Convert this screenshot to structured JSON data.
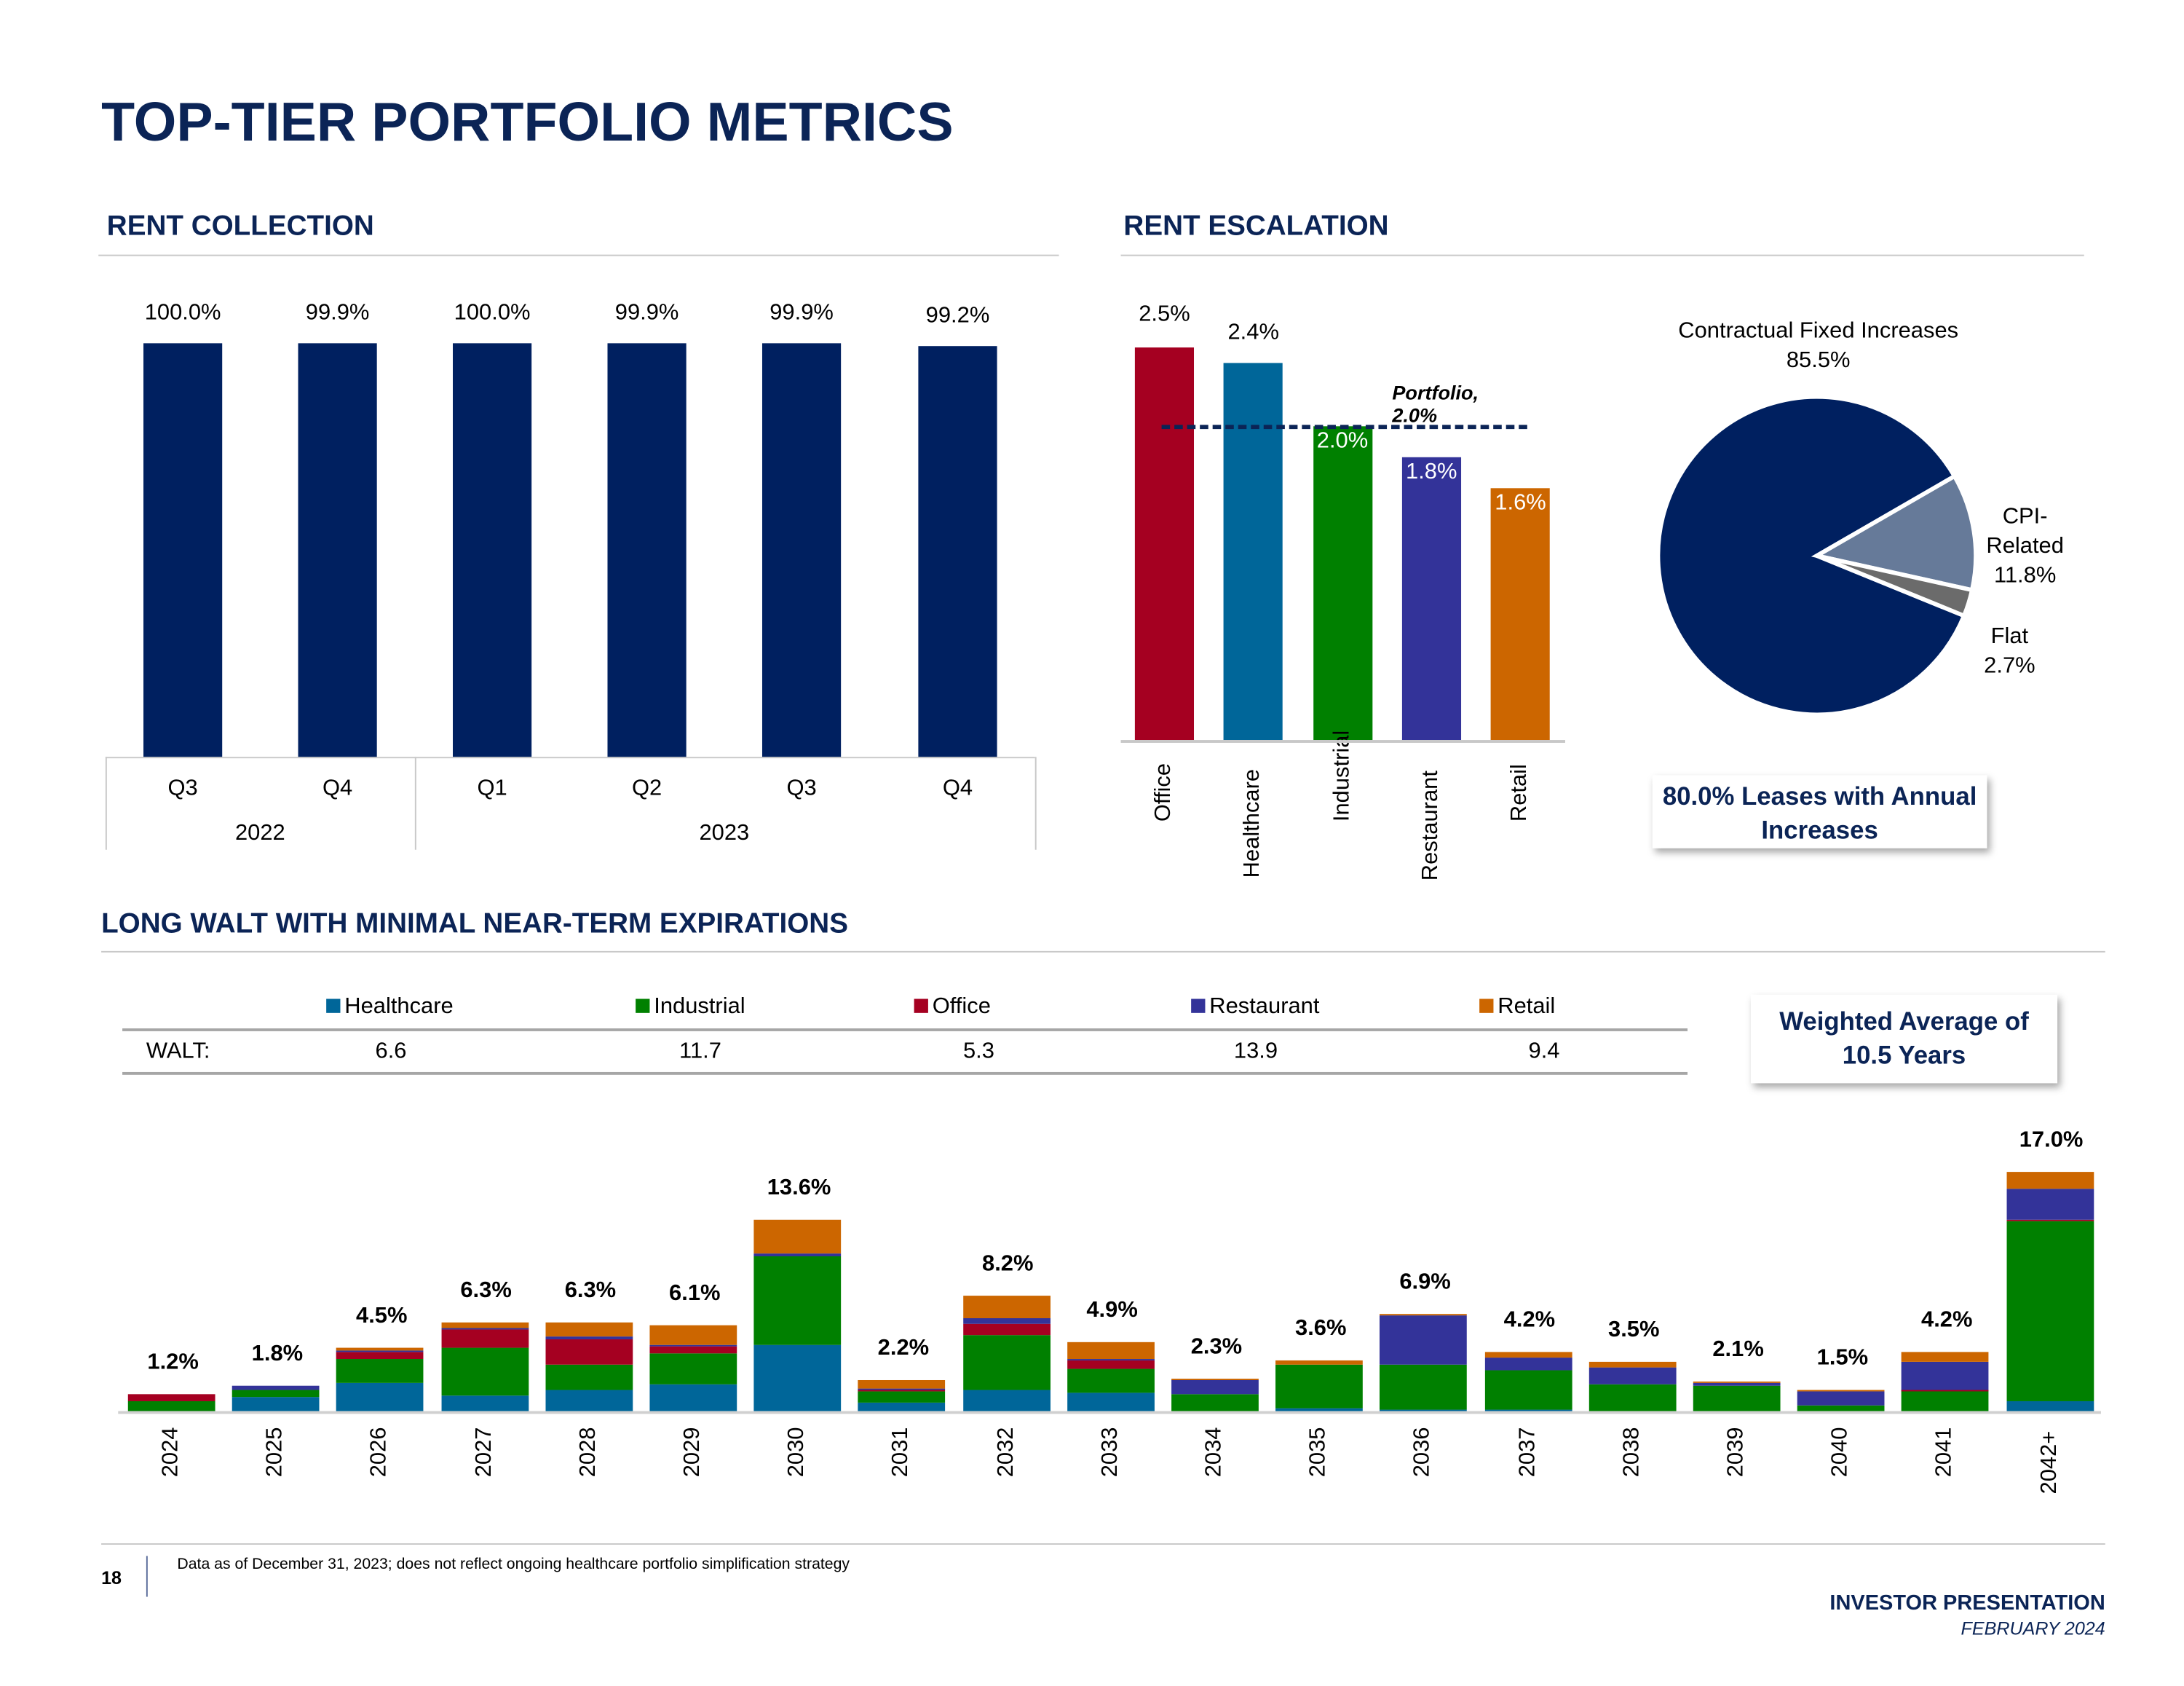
{
  "title": "TOP-TIER PORTFOLIO METRICS",
  "sections": {
    "rent_collection": "RENT COLLECTION",
    "rent_escalation": "RENT ESCALATION",
    "walt": "LONG WALT WITH MINIMAL NEAR-TERM EXPIRATIONS"
  },
  "colors": {
    "navy": "#002060",
    "Healthcare": "#006699",
    "Industrial": "#008000",
    "Office": "#A50021",
    "Restaurant": "#333399",
    "Retail": "#CC6600",
    "cpi": "#667A99",
    "flat": "#6B6B6B"
  },
  "chart_data": [
    {
      "type": "bar",
      "title": "RENT COLLECTION",
      "categories": [
        "Q3",
        "Q4",
        "Q1",
        "Q2",
        "Q3",
        "Q4"
      ],
      "groups": [
        {
          "label": "2022",
          "count": 2
        },
        {
          "label": "2023",
          "count": 4
        }
      ],
      "values": [
        100.0,
        99.9,
        100.0,
        99.9,
        99.9,
        99.2
      ],
      "labels": [
        "100.0%",
        "99.9%",
        "100.0%",
        "99.9%",
        "99.9%",
        "99.2%"
      ],
      "ylim": [
        0,
        100
      ]
    },
    {
      "type": "bar",
      "title": "RENT ESCALATION",
      "categories": [
        "Office",
        "Healthcare",
        "Industrial",
        "Restaurant",
        "Retail"
      ],
      "values": [
        2.5,
        2.4,
        2.0,
        1.8,
        1.6
      ],
      "labels": [
        "2.5%",
        "2.4%",
        "2.0%",
        "1.8%",
        "1.6%"
      ],
      "reference": {
        "label": "Portfolio, 2.0%",
        "value": 2.0
      },
      "ylim": [
        0,
        2.5
      ]
    },
    {
      "type": "pie",
      "slices": [
        {
          "name": "Contractual Fixed Increases",
          "value": 85.5,
          "label": "85.5%"
        },
        {
          "name": "CPI-Related",
          "value": 11.8,
          "label": "11.8%"
        },
        {
          "name": "Flat",
          "value": 2.7,
          "label": "2.7%"
        }
      ],
      "callout": "80.0% Leases with Annual Increases"
    },
    {
      "type": "bar",
      "stacked": true,
      "title": "LONG WALT WITH MINIMAL NEAR-TERM EXPIRATIONS",
      "categories": [
        "2024",
        "2025",
        "2026",
        "2027",
        "2028",
        "2029",
        "2030",
        "2031",
        "2032",
        "2033",
        "2034",
        "2035",
        "2036",
        "2037",
        "2038",
        "2039",
        "2040",
        "2041",
        "2042+"
      ],
      "totals": [
        "1.2%",
        "1.8%",
        "4.5%",
        "6.3%",
        "6.3%",
        "6.1%",
        "13.6%",
        "2.2%",
        "8.2%",
        "4.9%",
        "2.3%",
        "3.6%",
        "6.9%",
        "4.2%",
        "3.5%",
        "2.1%",
        "1.5%",
        "4.2%",
        "17.0%"
      ],
      "series": [
        {
          "name": "Healthcare",
          "walt": "6.6",
          "values": [
            0.05,
            1.0,
            2.0,
            1.1,
            1.5,
            1.9,
            4.7,
            0.65,
            1.5,
            1.35,
            0.05,
            0.2,
            0.15,
            0.1,
            0,
            0,
            0,
            0,
            0.75
          ]
        },
        {
          "name": "Industrial",
          "walt": "11.7",
          "values": [
            0.7,
            0.5,
            1.7,
            3.4,
            1.8,
            2.2,
            6.3,
            0.8,
            3.9,
            1.65,
            1.2,
            3.1,
            3.2,
            2.85,
            1.9,
            1.85,
            0.45,
            1.5,
            12.8
          ]
        },
        {
          "name": "Office",
          "walt": "5.3",
          "values": [
            0.45,
            0,
            0.5,
            1.3,
            1.8,
            0.55,
            0,
            0.05,
            0.8,
            0.6,
            0,
            0,
            0,
            0,
            0,
            0,
            0,
            0.05,
            0.1
          ]
        },
        {
          "name": "Restaurant",
          "walt": "13.9",
          "values": [
            0,
            0.3,
            0.1,
            0.1,
            0.2,
            0.1,
            0.25,
            0.1,
            0.4,
            0.1,
            0.95,
            0,
            3.45,
            0.85,
            1.2,
            0.15,
            1.0,
            2.0,
            2.15
          ]
        },
        {
          "name": "Retail",
          "walt": "9.4",
          "values": [
            0,
            0,
            0.2,
            0.4,
            1.0,
            1.35,
            2.35,
            0.6,
            1.6,
            1.2,
            0.1,
            0.3,
            0.1,
            0.4,
            0.4,
            0.1,
            0.05,
            0.65,
            1.2
          ]
        }
      ],
      "walt_label": "WALT:",
      "callout": "Weighted Average of 10.5 Years"
    }
  ],
  "footer": {
    "page": "18",
    "note": "Data as of December 31, 2023; does not reflect ongoing healthcare portfolio simplification strategy",
    "brand": "INVESTOR PRESENTATION",
    "date": "FEBRUARY 2024"
  }
}
